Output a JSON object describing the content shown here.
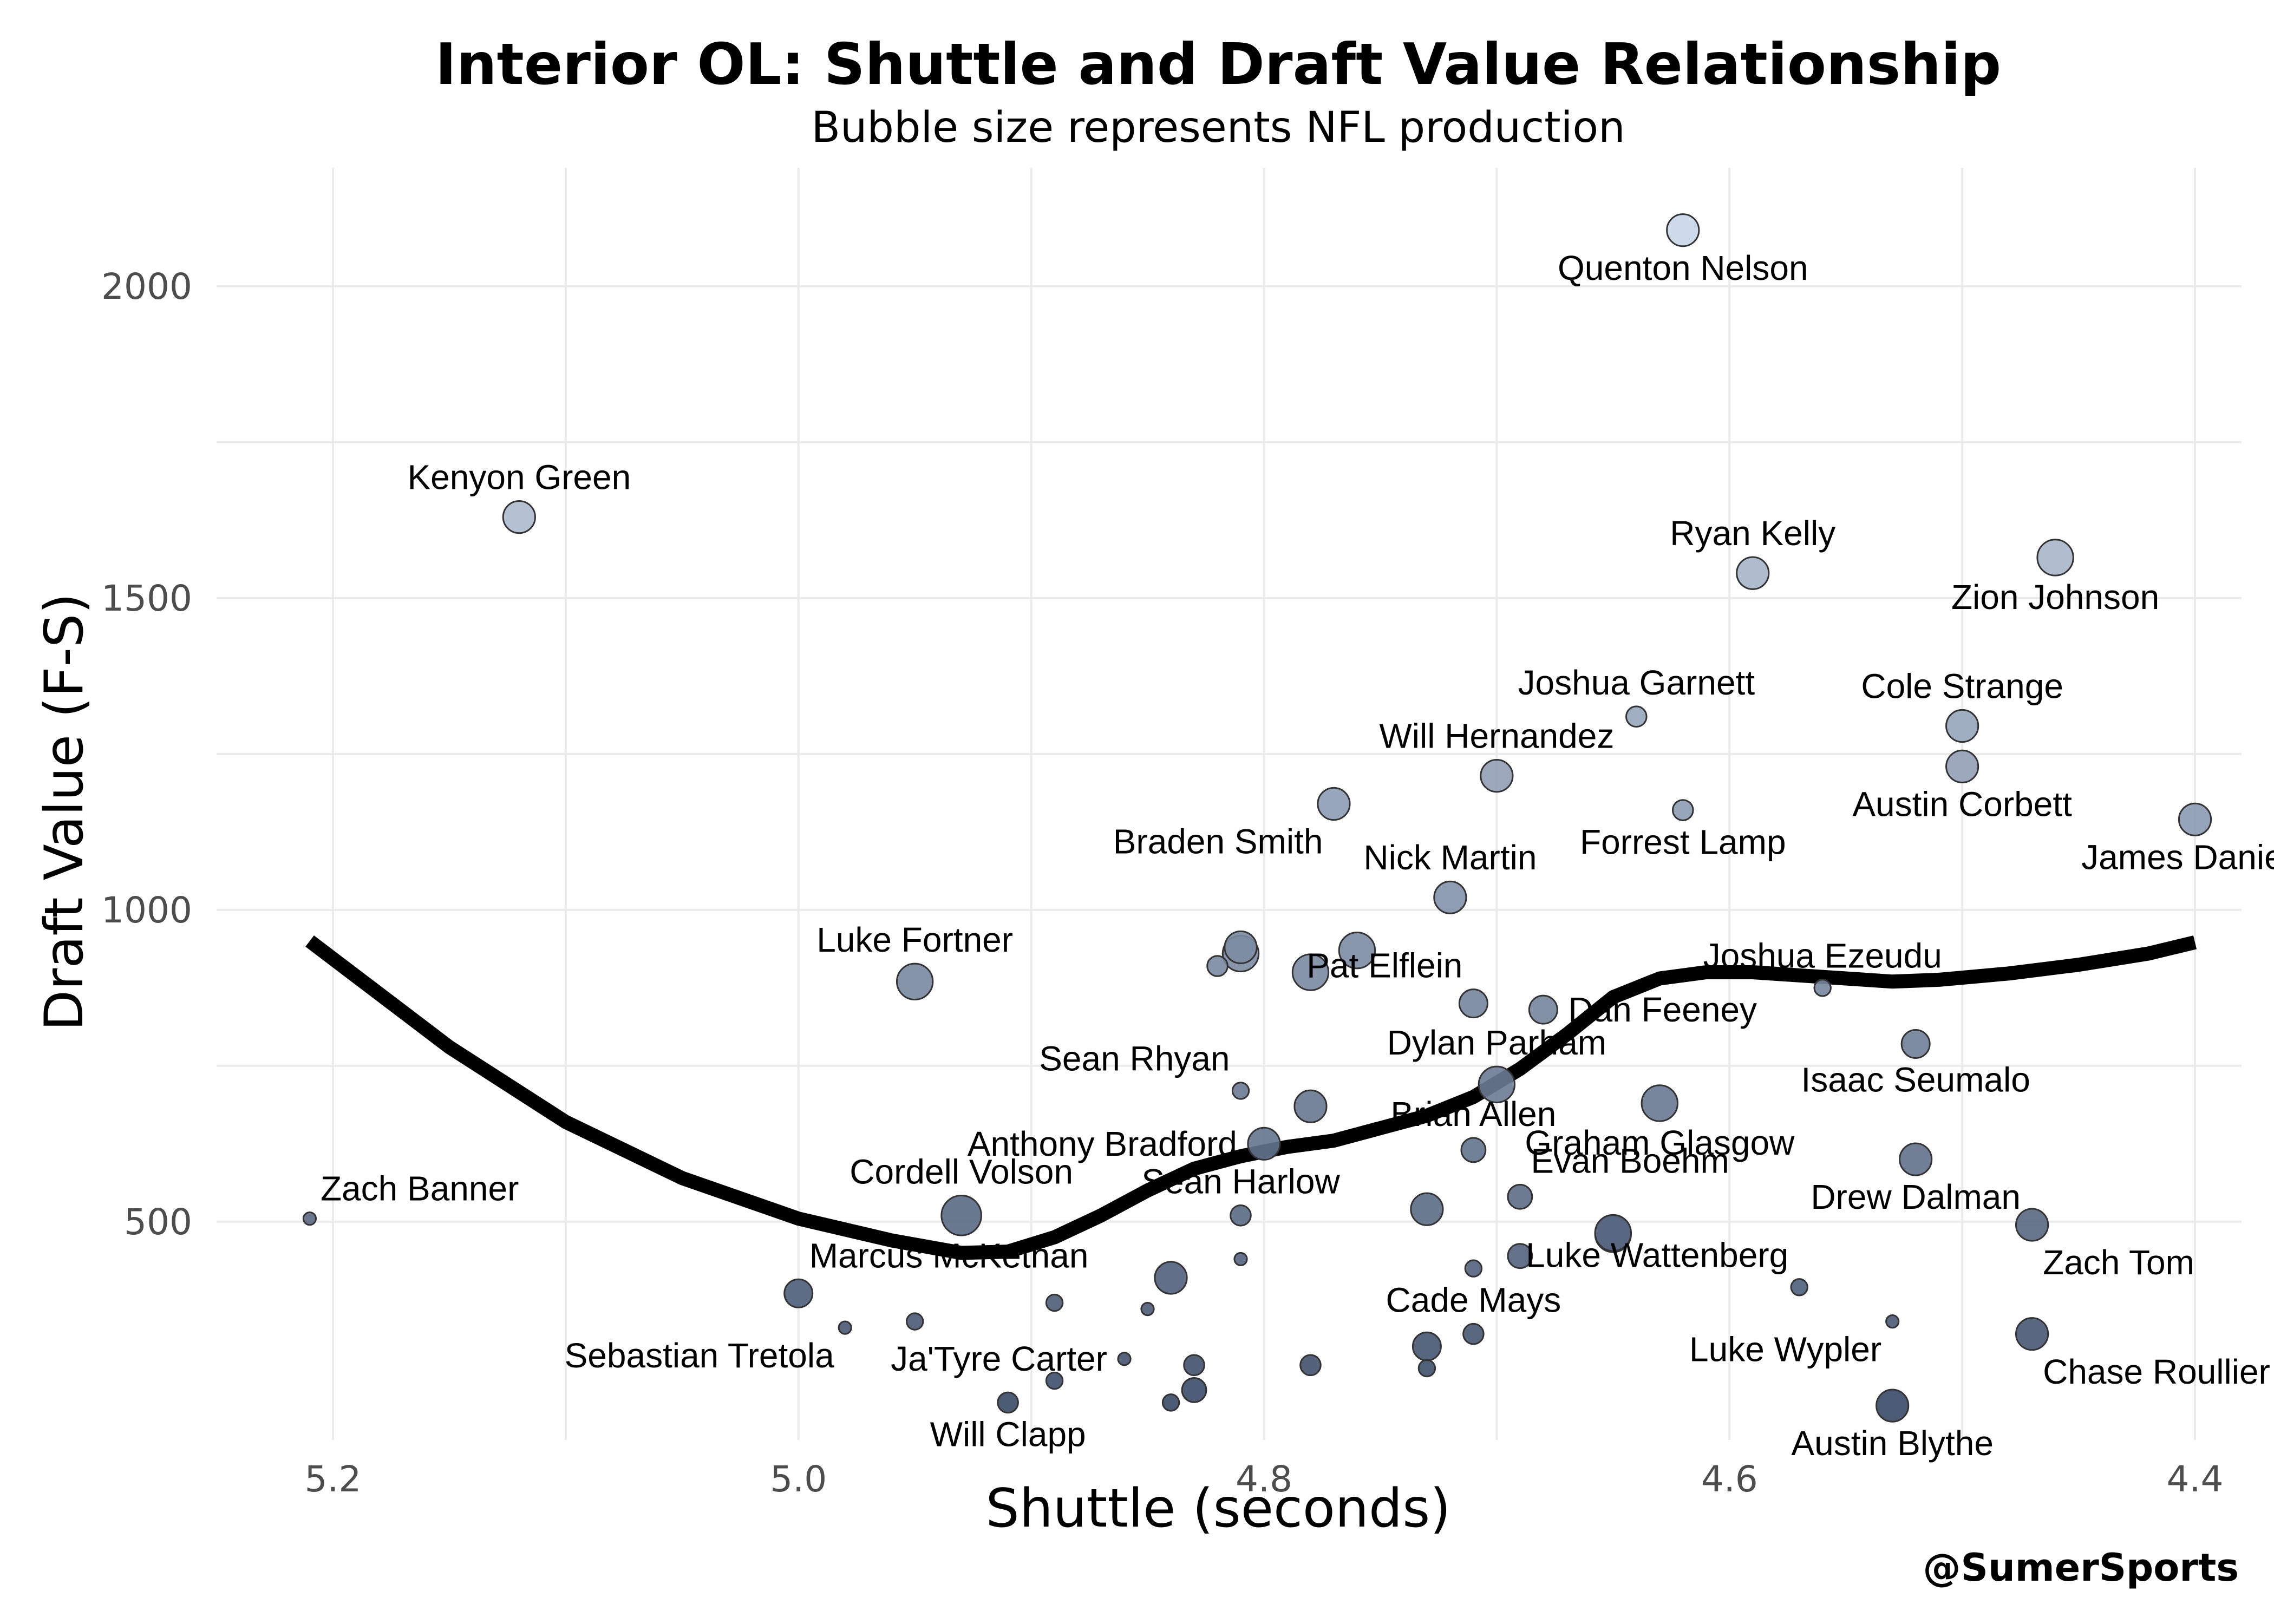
{
  "chart_data": {
    "type": "scatter",
    "title": "Interior OL: Shuttle and Draft Value Relationship",
    "subtitle": "Bubble size represents NFL production",
    "xlabel": "Shuttle (seconds)",
    "ylabel": "Draft Value (F-S)",
    "credit": "@SumerSports",
    "x_reversed": true,
    "xlim": [
      5.25,
      4.38
    ],
    "ylim": [
      150,
      2190
    ],
    "xticks": [
      5.2,
      5.0,
      4.8,
      4.6,
      4.4
    ],
    "xtick_labels": [
      "5.2",
      "5.0",
      "4.8",
      "4.6",
      "4.4"
    ],
    "yticks": [
      500,
      1000,
      1500,
      2000
    ],
    "ytick_labels": [
      "500",
      "1000",
      "1500",
      "2000"
    ],
    "grid": true,
    "legend": "none",
    "colors": {
      "low": "#2e3f5c",
      "high": "#c7d6e8",
      "stroke": "#333333",
      "line": "#000000",
      "grid": "#ebebeb"
    },
    "points": [
      {
        "name": "Quenton Nelson",
        "x": 4.62,
        "y": 2090,
        "size": 6,
        "label_pos": "below"
      },
      {
        "name": "Kenyon Green",
        "x": 5.12,
        "y": 1630,
        "size": 6,
        "label_pos": "above"
      },
      {
        "name": "Ryan Kelly",
        "x": 4.59,
        "y": 1540,
        "size": 6,
        "label_pos": "above"
      },
      {
        "name": "Zion Johnson",
        "x": 4.46,
        "y": 1565,
        "size": 7,
        "label_pos": "below"
      },
      {
        "name": "Joshua Garnett",
        "x": 4.64,
        "y": 1310,
        "size": 3,
        "label_pos": "above"
      },
      {
        "name": "Cole Strange",
        "x": 4.5,
        "y": 1295,
        "size": 6,
        "label_pos": "above"
      },
      {
        "name": "Will Hernandez",
        "x": 4.7,
        "y": 1215,
        "size": 6,
        "label_pos": "above"
      },
      {
        "name": "Austin Corbett",
        "x": 4.5,
        "y": 1230,
        "size": 6,
        "label_pos": "below"
      },
      {
        "name": "Braden Smith",
        "x": 4.77,
        "y": 1170,
        "size": 6,
        "label_pos": "below-left"
      },
      {
        "name": "Forrest Lamp",
        "x": 4.62,
        "y": 1160,
        "size": 3,
        "label_pos": "below"
      },
      {
        "name": "James Daniels",
        "x": 4.4,
        "y": 1145,
        "size": 6,
        "label_pos": "below"
      },
      {
        "name": "Nick Martin",
        "x": 4.72,
        "y": 1020,
        "size": 6,
        "label_pos": "above"
      },
      {
        "name": "Luke Fortner",
        "x": 4.95,
        "y": 885,
        "size": 7,
        "label_pos": "above"
      },
      {
        "name": "Pat Elflein",
        "x": 4.71,
        "y": 850,
        "size": 5,
        "label_pos": "above-left"
      },
      {
        "name": "Joshua Ezeudu",
        "x": 4.56,
        "y": 875,
        "size": 2,
        "label_pos": "above"
      },
      {
        "name": "Dan Feeney",
        "x": 4.68,
        "y": 840,
        "size": 5,
        "label_pos": "right"
      },
      {
        "name": "Isaac Seumalo",
        "x": 4.52,
        "y": 785,
        "size": 5,
        "label_pos": "below"
      },
      {
        "name": "Sean Rhyan",
        "x": 4.81,
        "y": 710,
        "size": 2,
        "label_pos": "above-left"
      },
      {
        "name": "Dylan Parham",
        "x": 4.7,
        "y": 720,
        "size": 7,
        "label_pos": "above"
      },
      {
        "name": "Graham Glasgow",
        "x": 4.63,
        "y": 690,
        "size": 7,
        "label_pos": "below"
      },
      {
        "name": "Brian Allen",
        "x": 4.71,
        "y": 615,
        "size": 4,
        "label_pos": "above"
      },
      {
        "name": "Anthony Bradford",
        "x": 4.8,
        "y": 625,
        "size": 6,
        "label_pos": "left"
      },
      {
        "name": "Drew Dalman",
        "x": 4.52,
        "y": 600,
        "size": 6,
        "label_pos": "below"
      },
      {
        "name": "Evan Boehm",
        "x": 4.69,
        "y": 540,
        "size": 4,
        "label_pos": "above-right"
      },
      {
        "name": "Zach Banner",
        "x": 5.21,
        "y": 505,
        "size": 1,
        "label_pos": "above-right"
      },
      {
        "name": "Cordell Volson",
        "x": 4.93,
        "y": 510,
        "size": 8,
        "label_pos": "above"
      },
      {
        "name": "Sean Harlow",
        "x": 4.81,
        "y": 510,
        "size": 3,
        "label_pos": "above"
      },
      {
        "name": "Zach Tom",
        "x": 4.47,
        "y": 495,
        "size": 6,
        "label_pos": "below-right"
      },
      {
        "name": "Luke Wattenberg",
        "x": 4.57,
        "y": 395,
        "size": 2,
        "label_pos": "above-left"
      },
      {
        "name": "Marcus McKethan",
        "x": 5.0,
        "y": 385,
        "size": 5,
        "label_pos": "above-right"
      },
      {
        "name": "Cade Mays",
        "x": 4.71,
        "y": 320,
        "size": 3,
        "label_pos": "above"
      },
      {
        "name": "Sebastian Tretola",
        "x": 4.98,
        "y": 330,
        "size": 1,
        "label_pos": "below-left"
      },
      {
        "name": "Ja'Tyre Carter",
        "x": 4.86,
        "y": 280,
        "size": 1,
        "label_pos": "left"
      },
      {
        "name": "Luke Wypler",
        "x": 4.53,
        "y": 340,
        "size": 1,
        "label_pos": "below-left"
      },
      {
        "name": "Chase Roullier",
        "x": 4.47,
        "y": 320,
        "size": 6,
        "label_pos": "below-right"
      },
      {
        "name": "Will Clapp",
        "x": 4.91,
        "y": 210,
        "size": 3,
        "label_pos": "below"
      },
      {
        "name": "Austin Blythe",
        "x": 4.53,
        "y": 205,
        "size": 6,
        "label_pos": "below"
      },
      {
        "name": "",
        "x": 4.81,
        "y": 940,
        "size": 6
      },
      {
        "name": "",
        "x": 4.81,
        "y": 930,
        "size": 7
      },
      {
        "name": "",
        "x": 4.82,
        "y": 910,
        "size": 3
      },
      {
        "name": "",
        "x": 4.78,
        "y": 900,
        "size": 7
      },
      {
        "name": "",
        "x": 4.76,
        "y": 935,
        "size": 7
      },
      {
        "name": "",
        "x": 4.78,
        "y": 685,
        "size": 6
      },
      {
        "name": "",
        "x": 4.73,
        "y": 520,
        "size": 6
      },
      {
        "name": "",
        "x": 4.65,
        "y": 480,
        "size": 7
      },
      {
        "name": "",
        "x": 4.65,
        "y": 482,
        "size": 7
      },
      {
        "name": "",
        "x": 4.69,
        "y": 445,
        "size": 4
      },
      {
        "name": "",
        "x": 4.71,
        "y": 425,
        "size": 2
      },
      {
        "name": "",
        "x": 4.81,
        "y": 440,
        "size": 1
      },
      {
        "name": "",
        "x": 4.84,
        "y": 410,
        "size": 6
      },
      {
        "name": "",
        "x": 4.89,
        "y": 370,
        "size": 2
      },
      {
        "name": "",
        "x": 4.95,
        "y": 340,
        "size": 2
      },
      {
        "name": "",
        "x": 4.85,
        "y": 360,
        "size": 1
      },
      {
        "name": "",
        "x": 4.73,
        "y": 300,
        "size": 5
      },
      {
        "name": "",
        "x": 4.73,
        "y": 265,
        "size": 2
      },
      {
        "name": "",
        "x": 4.78,
        "y": 270,
        "size": 3
      },
      {
        "name": "",
        "x": 4.83,
        "y": 270,
        "size": 3
      },
      {
        "name": "",
        "x": 4.83,
        "y": 230,
        "size": 4
      },
      {
        "name": "",
        "x": 4.84,
        "y": 210,
        "size": 2
      },
      {
        "name": "",
        "x": 4.89,
        "y": 245,
        "size": 2
      }
    ],
    "trend_line": {
      "x": [
        5.21,
        5.15,
        5.1,
        5.05,
        5.0,
        4.96,
        4.93,
        4.91,
        4.89,
        4.87,
        4.85,
        4.83,
        4.81,
        4.79,
        4.77,
        4.75,
        4.73,
        4.71,
        4.69,
        4.67,
        4.65,
        4.63,
        4.61,
        4.59,
        4.57,
        4.55,
        4.53,
        4.51,
        4.48,
        4.45,
        4.42,
        4.4
      ],
      "y": [
        950,
        780,
        660,
        570,
        505,
        470,
        450,
        452,
        475,
        510,
        550,
        585,
        605,
        620,
        630,
        650,
        670,
        700,
        745,
        800,
        860,
        890,
        900,
        900,
        895,
        890,
        885,
        888,
        898,
        912,
        930,
        948
      ]
    }
  }
}
